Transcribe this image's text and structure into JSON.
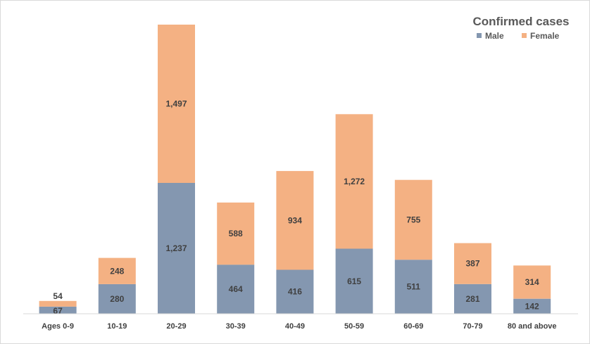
{
  "chart_data": {
    "type": "bar",
    "stacked": true,
    "title": "Confirmed cases",
    "xlabel": "",
    "ylabel": "",
    "categories": [
      "Ages 0-9",
      "10-19",
      "20-29",
      "30-39",
      "40-49",
      "50-59",
      "60-69",
      "70-79",
      "80 and above"
    ],
    "series": [
      {
        "name": "Male",
        "color": "#8497b0",
        "values": [
          67,
          280,
          1237,
          464,
          416,
          615,
          511,
          281,
          142
        ],
        "labels": [
          "67",
          "280",
          "1,237",
          "464",
          "416",
          "615",
          "511",
          "281",
          "142"
        ]
      },
      {
        "name": "Female",
        "color": "#f4b183",
        "values": [
          54,
          248,
          1497,
          588,
          934,
          1272,
          755,
          387,
          314
        ],
        "labels": [
          "54",
          "248",
          "1,497",
          "588",
          "934",
          "1,272",
          "755",
          "387",
          "314"
        ]
      }
    ],
    "ylim": [
      0,
      2734
    ],
    "grid": false,
    "legend_position": "top-right"
  }
}
